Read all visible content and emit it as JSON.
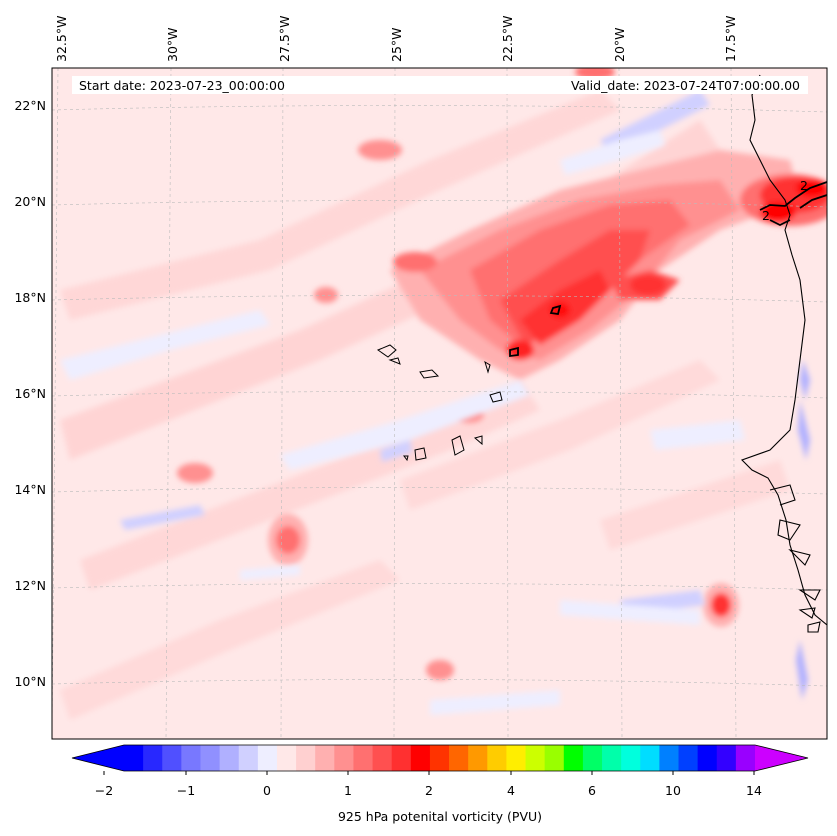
{
  "header": {
    "start_date": "Start date: 2023-07-23_00:00:00",
    "valid_date": "Valid_date: 2023-07-24T07:00:00.00"
  },
  "map": {
    "lon_labels": [
      "32.5°W",
      "30°W",
      "27.5°W",
      "25°W",
      "22.5°W",
      "20°W",
      "17.5°W"
    ],
    "lat_labels": [
      "22°N",
      "20°N",
      "18°N",
      "16°N",
      "14°N",
      "12°N",
      "10°N"
    ],
    "contour_label": "2",
    "colors": {
      "coast": "#000000",
      "grid": "#bbbbbb",
      "bg": "#ffe8e8"
    }
  },
  "colorbar": {
    "title": "925 hPa potenital vorticity (PVU)",
    "tick_labels": [
      "−2",
      "−1",
      "0",
      "1",
      "2",
      "4",
      "6",
      "10",
      "14"
    ],
    "colors": [
      "#0000ff",
      "#2828ff",
      "#5050ff",
      "#7878ff",
      "#9090ff",
      "#b0b0ff",
      "#d0d0ff",
      "#eeeeff",
      "#ffe8e8",
      "#ffd0d0",
      "#ffb0b0",
      "#ff9090",
      "#ff7070",
      "#ff5050",
      "#ff3030",
      "#ff0000",
      "#ff3300",
      "#ff6600",
      "#ff9900",
      "#ffcc00",
      "#ffee00",
      "#ccff00",
      "#99ff00",
      "#00ff00",
      "#00ff66",
      "#00ffaa",
      "#00ffdd",
      "#00ddff",
      "#0080ff",
      "#0040ff",
      "#0000ff",
      "#3300ff",
      "#9900ff"
    ],
    "over_color": "#cc00ff",
    "under_color": "#0000ff"
  }
}
